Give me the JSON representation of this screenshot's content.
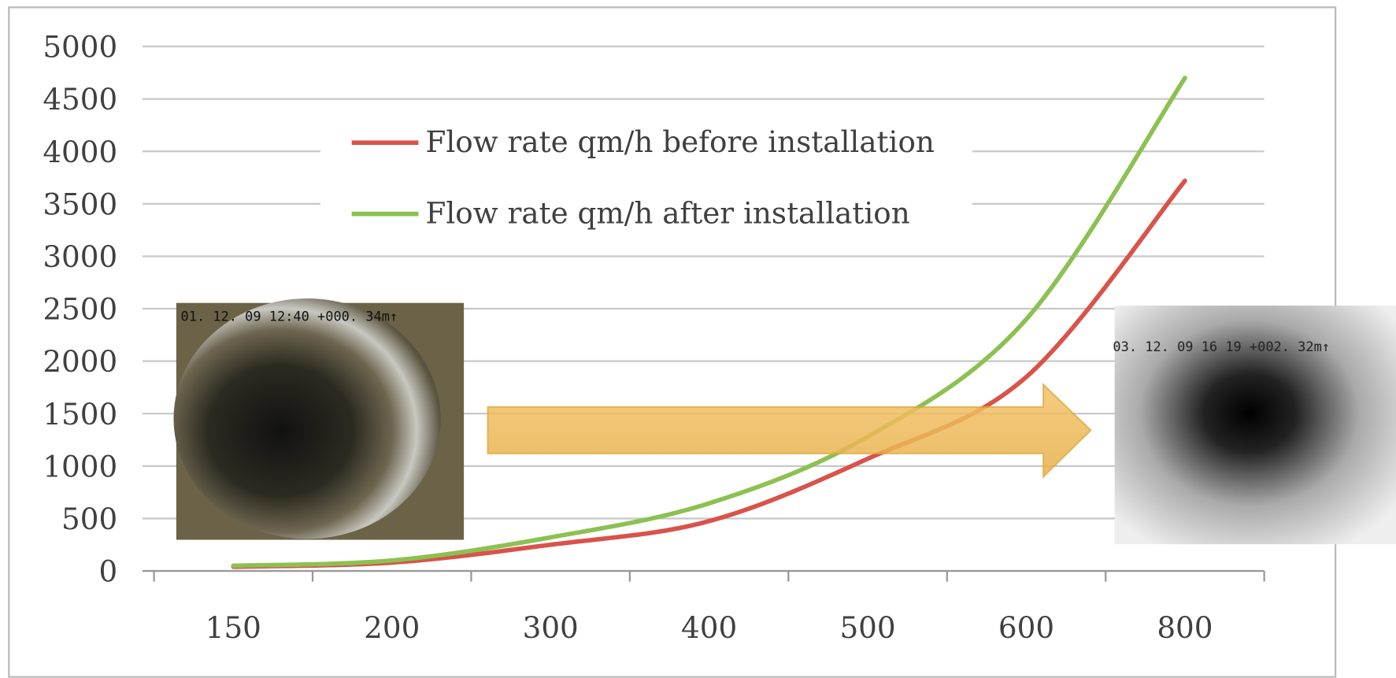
{
  "chart_data": {
    "type": "line",
    "categories": [
      "150",
      "200",
      "300",
      "400",
      "500",
      "600",
      "800"
    ],
    "series": [
      {
        "name": "Flow rate qm/h before installation",
        "color": "#d9534a",
        "values": [
          40,
          80,
          250,
          475,
          1070,
          1850,
          3720
        ]
      },
      {
        "name": "Flow rate qm/h after installation",
        "color": "#8cc152",
        "values": [
          50,
          100,
          320,
          645,
          1280,
          2400,
          4700
        ]
      }
    ],
    "ylim": [
      0,
      5000
    ],
    "yticks": [
      0,
      500,
      1000,
      1500,
      2000,
      2500,
      3000,
      3500,
      4000,
      4500,
      5000
    ],
    "grid": true,
    "annotations": [
      "01. 12. 09   12:40    +000. 34m↑",
      "03. 12. 09   16 19    +002. 32m↑"
    ]
  }
}
